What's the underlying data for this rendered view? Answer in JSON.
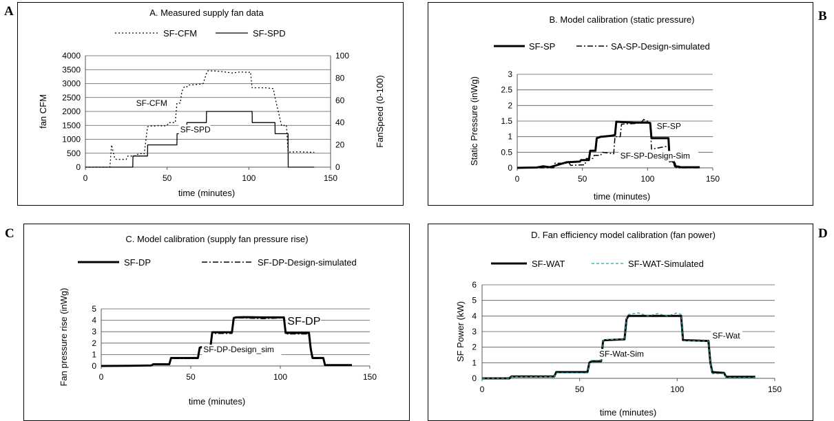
{
  "panel_letters": [
    "A",
    "B",
    "C",
    "D"
  ],
  "chart_data": [
    {
      "type": "line",
      "title": "A.  Measured supply fan data",
      "xlabel": "time (minutes)",
      "ylabel": "fan CFM",
      "y2label": "FanSpeed (0-100)",
      "xlim": [
        0,
        150
      ],
      "ylim": [
        0,
        4000
      ],
      "y2lim": [
        0,
        100
      ],
      "xticks": [
        0,
        50,
        100,
        150
      ],
      "yticks": [
        0,
        500,
        1000,
        1500,
        2000,
        2500,
        3000,
        3500,
        4000
      ],
      "y2ticks": [
        0,
        20,
        40,
        60,
        80,
        100
      ],
      "grid": true,
      "legend": "top",
      "series": [
        {
          "name": "SF-CFM",
          "axis": "left",
          "style": "dotted",
          "color": "#000000",
          "width": 1.3,
          "x": [
            0,
            15,
            16,
            17,
            18,
            19,
            25,
            26,
            30,
            31,
            35,
            36,
            38,
            40,
            41,
            46,
            47,
            50,
            51,
            55,
            56,
            58,
            59,
            60,
            61,
            62,
            63,
            65,
            70,
            72,
            74,
            75,
            80,
            85,
            90,
            95,
            100,
            101,
            102,
            105,
            110,
            115,
            116,
            118,
            120,
            121,
            122,
            123,
            124,
            125,
            130,
            135,
            140
          ],
          "y": [
            0,
            0,
            800,
            550,
            300,
            280,
            280,
            400,
            400,
            450,
            500,
            480,
            1450,
            1480,
            1470,
            1500,
            1470,
            1500,
            1600,
            1600,
            2300,
            2300,
            2700,
            2850,
            2900,
            2880,
            2950,
            2950,
            2980,
            3000,
            3350,
            3460,
            3450,
            3420,
            3380,
            3420,
            3400,
            3420,
            2850,
            2850,
            2850,
            2820,
            2500,
            2000,
            1500,
            1520,
            1480,
            1500,
            550,
            540,
            550,
            540,
            530
          ]
        },
        {
          "name": "SF-SPD",
          "axis": "right",
          "style": "solid",
          "color": "#000000",
          "width": 1.3,
          "x": [
            0,
            29,
            29.1,
            38,
            38.1,
            56,
            56.1,
            62,
            62.1,
            74,
            74.1,
            102,
            102.1,
            116,
            116.1,
            124,
            124.1,
            140
          ],
          "y": [
            0,
            0,
            10,
            10,
            20,
            20,
            30,
            30,
            40,
            40,
            50,
            50,
            40,
            40,
            30,
            30,
            0,
            0
          ]
        }
      ],
      "annotations": [
        {
          "text": "SF-CFM",
          "x": 31,
          "y": 2200
        },
        {
          "text": "SF-SPD",
          "x": 58,
          "y": 1250
        }
      ]
    },
    {
      "type": "line",
      "title": "B.  Model calibration (static pressure)",
      "xlabel": "time (minutes)",
      "ylabel": "Static Pressure (inWg)",
      "xlim": [
        0,
        150
      ],
      "ylim": [
        0,
        3
      ],
      "xticks": [
        0,
        50,
        100,
        150
      ],
      "yticks": [
        0,
        0.5,
        1,
        1.5,
        2,
        2.5,
        3
      ],
      "grid": true,
      "legend": "top",
      "series": [
        {
          "name": "SF-SP",
          "style": "solid",
          "color": "#000000",
          "width": 3,
          "x": [
            0,
            15,
            20,
            25,
            38,
            39,
            48,
            49,
            55,
            56,
            60,
            61,
            63,
            64,
            65,
            70,
            75,
            76,
            80,
            90,
            100,
            102,
            103,
            116,
            117,
            120,
            121,
            124,
            125,
            140
          ],
          "y": [
            0,
            0.01,
            0.05,
            0.02,
            0.18,
            0.18,
            0.2,
            0.25,
            0.25,
            0.55,
            0.55,
            0.95,
            0.98,
            1.0,
            1.0,
            1.02,
            1.05,
            1.48,
            1.47,
            1.45,
            1.45,
            1.44,
            0.95,
            0.95,
            0.22,
            0.22,
            0.05,
            0.04,
            0.02,
            0.02
          ]
        },
        {
          "name": "SA-SP-Design-simulated",
          "style": "dashdot",
          "color": "#000000",
          "width": 1.5,
          "x": [
            0,
            28,
            29,
            40,
            41,
            52,
            53,
            58,
            59,
            64,
            65,
            74,
            75,
            79,
            80,
            90,
            95,
            97,
            100,
            102,
            103,
            116,
            117,
            121,
            122,
            140
          ],
          "y": [
            0,
            0,
            0.15,
            0.15,
            0.08,
            0.1,
            0.3,
            0.3,
            0.4,
            0.4,
            0.5,
            0.45,
            1.0,
            1.0,
            1.4,
            1.42,
            1.45,
            1.55,
            1.5,
            1.45,
            0.6,
            0.7,
            0.18,
            0.18,
            0,
            0
          ]
        }
      ],
      "annotations": [
        {
          "text": "SF-SP",
          "x": 107,
          "y": 1.25
        },
        {
          "text": "SF-SP-Design-Sim",
          "x": 79,
          "y": 0.3
        }
      ]
    },
    {
      "type": "line",
      "title": "C.  Model calibration (supply fan pressure rise)",
      "xlabel": "time (minutes)",
      "ylabel": "Fan pressure rise (inWg)",
      "xlim": [
        0,
        150
      ],
      "ylim": [
        0,
        5
      ],
      "xticks": [
        0,
        50,
        100,
        150
      ],
      "yticks": [
        0,
        1,
        2,
        3,
        4,
        5
      ],
      "grid": true,
      "legend": "top",
      "series": [
        {
          "name": "SF-DP",
          "style": "solid",
          "color": "#000000",
          "width": 3,
          "x": [
            0,
            15,
            28,
            29,
            38,
            39,
            54,
            55,
            56,
            61,
            62,
            73,
            74,
            75,
            80,
            90,
            100,
            102,
            103,
            116,
            117,
            118,
            124,
            125,
            140
          ],
          "y": [
            0,
            0.02,
            0.05,
            0.15,
            0.15,
            0.7,
            0.7,
            1.6,
            1.65,
            1.65,
            2.95,
            2.95,
            4.2,
            4.25,
            4.28,
            4.25,
            4.25,
            4.25,
            2.9,
            2.9,
            1.5,
            0.7,
            0.7,
            0.08,
            0.08
          ]
        },
        {
          "name": "SF-DP-Design-simulated",
          "style": "dashdot",
          "color": "#000000",
          "width": 1.5,
          "x": [
            0,
            28,
            29,
            38,
            39,
            54,
            55,
            56,
            61,
            62,
            73,
            74,
            75,
            80,
            90,
            100,
            102,
            103,
            116,
            117,
            118,
            124,
            125,
            140
          ],
          "y": [
            0,
            0.05,
            0.1,
            0.1,
            0.65,
            0.65,
            1.55,
            1.6,
            1.6,
            2.85,
            2.85,
            4.1,
            4.2,
            4.2,
            4.15,
            4.2,
            4.2,
            2.8,
            2.8,
            1.4,
            0.65,
            0.65,
            0.05,
            0.05
          ]
        }
      ],
      "annotations": [
        {
          "text": "SF-DP",
          "x": 104,
          "y": 3.6
        },
        {
          "text": "SF-DP-Design_sim",
          "x": 57,
          "y": 1.2
        }
      ]
    },
    {
      "type": "line",
      "title": "D.  Fan efficiency model calibration (fan power)",
      "xlabel": "time (minutes)",
      "ylabel": "SF Power (kW)",
      "xlim": [
        0,
        150
      ],
      "ylim": [
        0,
        6
      ],
      "xticks": [
        0,
        50,
        100,
        150
      ],
      "yticks": [
        0,
        1,
        2,
        3,
        4,
        5,
        6
      ],
      "grid": true,
      "legend": "top",
      "series": [
        {
          "name": "SF-WAT",
          "style": "solid",
          "color": "#000000",
          "width": 3,
          "x": [
            0,
            14,
            15,
            37,
            38,
            54,
            55,
            56,
            61,
            62,
            63,
            73,
            74,
            75,
            100,
            102,
            103,
            116,
            117,
            118,
            124,
            125,
            140
          ],
          "y": [
            0,
            0,
            0.12,
            0.12,
            0.4,
            0.4,
            1.0,
            1.1,
            1.1,
            2.4,
            2.45,
            2.5,
            3.8,
            4.0,
            4.0,
            4.0,
            2.45,
            2.4,
            1.0,
            0.4,
            0.35,
            0.1,
            0.1
          ]
        },
        {
          "name": "SF-WAT-Simulated",
          "style": "dashed",
          "color": "#20a0a0",
          "width": 1.3,
          "x": [
            0,
            14,
            15,
            37,
            38,
            54,
            55,
            56,
            61,
            62,
            63,
            73,
            74,
            75,
            80,
            85,
            90,
            95,
            100,
            102,
            103,
            116,
            117,
            118,
            124,
            125,
            140
          ],
          "y": [
            0,
            0,
            0.1,
            0.1,
            0.35,
            0.35,
            0.95,
            1.15,
            1.15,
            2.4,
            2.5,
            2.5,
            3.9,
            4.1,
            4.2,
            4.0,
            4.15,
            4.0,
            4.2,
            4.1,
            2.4,
            2.4,
            1.0,
            0.3,
            0.3,
            0.05,
            0.05
          ]
        }
      ],
      "annotations": [
        {
          "text": "SF-Wat",
          "x": 118,
          "y": 2.55
        },
        {
          "text": "SF-Wat-Sim",
          "x": 60,
          "y": 1.4
        }
      ]
    }
  ]
}
